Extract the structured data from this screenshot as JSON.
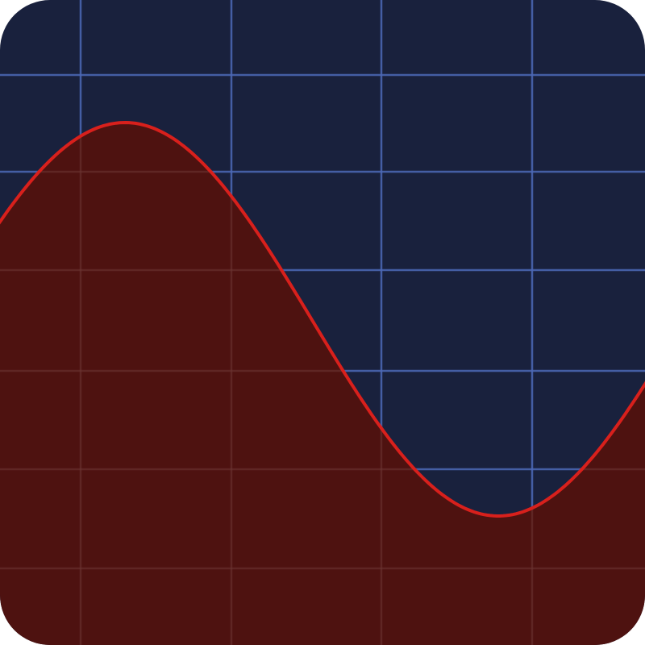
{
  "icon": {
    "kind": "oscilloscope-app-icon",
    "colors": {
      "background": "#19213d",
      "grid": "#4c68b6",
      "wave_fill": "#4e1210",
      "wave_line": "#d8201c",
      "grid_over_fill": "#6a3432"
    },
    "wave": {
      "shape": "sine",
      "cycles_visible": 1,
      "peak_fraction_of_height": 0.81,
      "trough_fraction_of_height": 0.2
    }
  }
}
